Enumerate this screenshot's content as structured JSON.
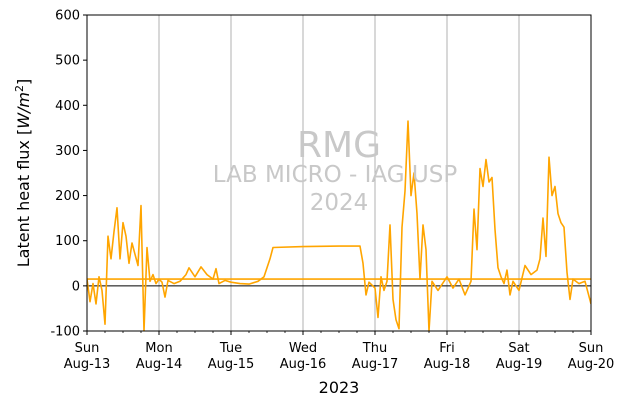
{
  "chart_data": {
    "type": "line",
    "xlabel": "2023",
    "ylabel_prefix": "Latent heat flux [",
    "ylabel_unit_base": "W/m",
    "ylabel_unit_exp": "2",
    "ylabel_suffix": "]",
    "ylim": [
      -100,
      600
    ],
    "y_ticks": [
      -100,
      0,
      100,
      200,
      300,
      400,
      500,
      600
    ],
    "x_range_days": [
      "2023-08-13",
      "2023-08-20"
    ],
    "x_ticks": [
      {
        "date": "2023-08-13",
        "day": "Sun",
        "date_label": "Aug-13"
      },
      {
        "date": "2023-08-14",
        "day": "Mon",
        "date_label": "Aug-14"
      },
      {
        "date": "2023-08-15",
        "day": "Tue",
        "date_label": "Aug-15"
      },
      {
        "date": "2023-08-16",
        "day": "Wed",
        "date_label": "Aug-16"
      },
      {
        "date": "2023-08-17",
        "day": "Thu",
        "date_label": "Aug-17"
      },
      {
        "date": "2023-08-18",
        "day": "Fri",
        "date_label": "Aug-18"
      },
      {
        "date": "2023-08-19",
        "day": "Sat",
        "date_label": "Aug-19"
      },
      {
        "date": "2023-08-20",
        "day": "Sun",
        "date_label": "Aug-20"
      }
    ],
    "grid": "vertical",
    "zero_line": true,
    "series": [
      {
        "color": "#ffa500",
        "points": [
          [
            "2023-08-13T00:00",
            15
          ],
          [
            "2023-08-13T01:00",
            -35
          ],
          [
            "2023-08-13T02:00",
            5
          ],
          [
            "2023-08-13T03:00",
            -40
          ],
          [
            "2023-08-13T04:00",
            20
          ],
          [
            "2023-08-13T05:00",
            -10
          ],
          [
            "2023-08-13T06:00",
            -85
          ],
          [
            "2023-08-13T07:00",
            110
          ],
          [
            "2023-08-13T08:00",
            60
          ],
          [
            "2023-08-13T09:00",
            120
          ],
          [
            "2023-08-13T10:00",
            173
          ],
          [
            "2023-08-13T11:00",
            60
          ],
          [
            "2023-08-13T12:00",
            140
          ],
          [
            "2023-08-13T13:00",
            110
          ],
          [
            "2023-08-13T14:00",
            50
          ],
          [
            "2023-08-13T15:00",
            95
          ],
          [
            "2023-08-13T16:00",
            70
          ],
          [
            "2023-08-13T17:00",
            45
          ],
          [
            "2023-08-13T18:00",
            178
          ],
          [
            "2023-08-13T19:00",
            -100
          ],
          [
            "2023-08-13T20:00",
            85
          ],
          [
            "2023-08-13T21:00",
            10
          ],
          [
            "2023-08-13T22:00",
            25
          ],
          [
            "2023-08-13T23:00",
            5
          ],
          [
            "2023-08-14T00:00",
            15
          ],
          [
            "2023-08-14T01:00",
            8
          ],
          [
            "2023-08-14T02:00",
            -25
          ],
          [
            "2023-08-14T03:00",
            12
          ],
          [
            "2023-08-14T05:00",
            5
          ],
          [
            "2023-08-14T07:00",
            10
          ],
          [
            "2023-08-14T09:00",
            25
          ],
          [
            "2023-08-14T10:00",
            40
          ],
          [
            "2023-08-14T12:00",
            20
          ],
          [
            "2023-08-14T14:00",
            42
          ],
          [
            "2023-08-14T16:00",
            25
          ],
          [
            "2023-08-14T18:00",
            15
          ],
          [
            "2023-08-14T19:00",
            38
          ],
          [
            "2023-08-14T20:00",
            5
          ],
          [
            "2023-08-14T22:00",
            12
          ],
          [
            "2023-08-15T00:00",
            8
          ],
          [
            "2023-08-15T03:00",
            5
          ],
          [
            "2023-08-15T06:00",
            4
          ],
          [
            "2023-08-15T09:00",
            10
          ],
          [
            "2023-08-15T11:00",
            20
          ],
          [
            "2023-08-15T12:00",
            40
          ],
          [
            "2023-08-15T13:00",
            60
          ],
          [
            "2023-08-15T14:00",
            85
          ],
          [
            "2023-08-16T00:00",
            87
          ],
          [
            "2023-08-16T12:00",
            88
          ],
          [
            "2023-08-16T19:00",
            88
          ],
          [
            "2023-08-16T20:00",
            50
          ],
          [
            "2023-08-16T21:00",
            -20
          ],
          [
            "2023-08-16T22:00",
            8
          ],
          [
            "2023-08-17T00:00",
            -5
          ],
          [
            "2023-08-17T01:00",
            -70
          ],
          [
            "2023-08-17T02:00",
            20
          ],
          [
            "2023-08-17T03:00",
            -10
          ],
          [
            "2023-08-17T04:00",
            10
          ],
          [
            "2023-08-17T05:00",
            135
          ],
          [
            "2023-08-17T06:00",
            -30
          ],
          [
            "2023-08-17T07:00",
            -75
          ],
          [
            "2023-08-17T08:00",
            -95
          ],
          [
            "2023-08-17T09:00",
            130
          ],
          [
            "2023-08-17T10:00",
            210
          ],
          [
            "2023-08-17T11:00",
            365
          ],
          [
            "2023-08-17T12:00",
            200
          ],
          [
            "2023-08-17T13:00",
            250
          ],
          [
            "2023-08-17T14:00",
            160
          ],
          [
            "2023-08-17T15:00",
            15
          ],
          [
            "2023-08-17T16:00",
            135
          ],
          [
            "2023-08-17T17:00",
            80
          ],
          [
            "2023-08-17T18:00",
            -100
          ],
          [
            "2023-08-17T19:00",
            10
          ],
          [
            "2023-08-17T21:00",
            -10
          ],
          [
            "2023-08-18T00:00",
            20
          ],
          [
            "2023-08-18T02:00",
            -5
          ],
          [
            "2023-08-18T04:00",
            15
          ],
          [
            "2023-08-18T06:00",
            -20
          ],
          [
            "2023-08-18T08:00",
            10
          ],
          [
            "2023-08-18T09:00",
            170
          ],
          [
            "2023-08-18T10:00",
            80
          ],
          [
            "2023-08-18T11:00",
            260
          ],
          [
            "2023-08-18T12:00",
            220
          ],
          [
            "2023-08-18T13:00",
            280
          ],
          [
            "2023-08-18T14:00",
            230
          ],
          [
            "2023-08-18T15:00",
            240
          ],
          [
            "2023-08-18T16:00",
            125
          ],
          [
            "2023-08-18T17:00",
            40
          ],
          [
            "2023-08-18T18:00",
            20
          ],
          [
            "2023-08-18T19:00",
            5
          ],
          [
            "2023-08-18T20:00",
            35
          ],
          [
            "2023-08-18T21:00",
            -20
          ],
          [
            "2023-08-18T22:00",
            10
          ],
          [
            "2023-08-19T00:00",
            -10
          ],
          [
            "2023-08-19T02:00",
            45
          ],
          [
            "2023-08-19T04:00",
            25
          ],
          [
            "2023-08-19T06:00",
            35
          ],
          [
            "2023-08-19T07:00",
            60
          ],
          [
            "2023-08-19T08:00",
            150
          ],
          [
            "2023-08-19T09:00",
            65
          ],
          [
            "2023-08-19T10:00",
            285
          ],
          [
            "2023-08-19T11:00",
            200
          ],
          [
            "2023-08-19T12:00",
            220
          ],
          [
            "2023-08-19T13:00",
            160
          ],
          [
            "2023-08-19T14:00",
            140
          ],
          [
            "2023-08-19T15:00",
            130
          ],
          [
            "2023-08-19T16:00",
            30
          ],
          [
            "2023-08-19T17:00",
            -30
          ],
          [
            "2023-08-19T18:00",
            15
          ],
          [
            "2023-08-19T20:00",
            5
          ],
          [
            "2023-08-19T22:00",
            10
          ],
          [
            "2023-08-20T00:00",
            -40
          ]
        ]
      },
      {
        "color": "#ffa500",
        "points": [
          [
            "2023-08-13T00:00",
            15
          ],
          [
            "2023-08-20T00:00",
            15
          ]
        ]
      }
    ]
  },
  "watermark": {
    "line1": "RMG",
    "line2": "LAB MICRO - IAG USP",
    "line3": "2024"
  },
  "colors": {
    "series": "#ffa500",
    "grid": "#b0b0b0",
    "zero_line": "#000000",
    "watermark": "#c8c8c8"
  }
}
